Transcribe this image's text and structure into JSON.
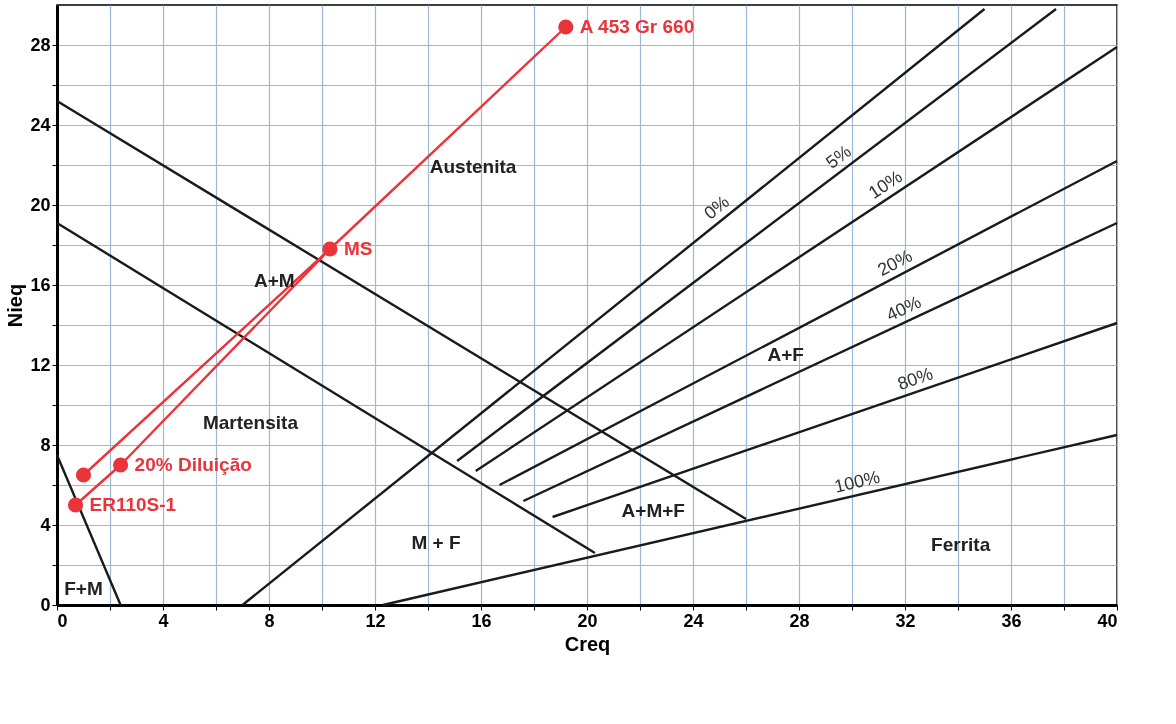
{
  "chart_data": {
    "type": "line",
    "xlabel": "Creq",
    "ylabel": "Nieq",
    "xlim": [
      0,
      40
    ],
    "ylim": [
      0,
      30
    ],
    "xticks": [
      0,
      {
        "value": 2,
        "label": null
      },
      4,
      {
        "value": 6,
        "label": null
      },
      8,
      {
        "value": 10,
        "label": null
      },
      12,
      {
        "value": 14,
        "label": null
      },
      16,
      {
        "value": 18,
        "label": null
      },
      20,
      {
        "value": 22,
        "label": null
      },
      24,
      {
        "value": 26,
        "label": null
      },
      28,
      {
        "value": 30,
        "label": null
      },
      32,
      {
        "value": 34,
        "label": null
      },
      36,
      {
        "value": 38,
        "label": null
      },
      40
    ],
    "yticks": [
      0,
      {
        "value": 2,
        "label": null
      },
      4,
      {
        "value": 6,
        "label": null
      },
      8,
      {
        "value": 10,
        "label": null
      },
      12,
      {
        "value": 14,
        "label": null
      },
      16,
      {
        "value": 18,
        "label": null
      },
      20,
      {
        "value": 22,
        "label": null
      },
      24,
      {
        "value": 26,
        "label": null
      },
      28
    ],
    "grid": true,
    "line_style": "solid",
    "series": [
      {
        "name": "0%",
        "color": "#1a1a1a",
        "x": [
          7.0,
          35.0
        ],
        "values": [
          0,
          29.8
        ]
      },
      {
        "name": "5%",
        "color": "#1a1a1a",
        "x": [
          15.1,
          37.7
        ],
        "values": [
          7.2,
          29.8
        ]
      },
      {
        "name": "10%",
        "color": "#1a1a1a",
        "x": [
          15.8,
          40
        ],
        "values": [
          6.7,
          27.9
        ]
      },
      {
        "name": "20%",
        "color": "#1a1a1a",
        "x": [
          16.7,
          40
        ],
        "values": [
          6.0,
          22.2
        ]
      },
      {
        "name": "40%",
        "color": "#1a1a1a",
        "x": [
          17.6,
          40
        ],
        "values": [
          5.2,
          19.1
        ]
      },
      {
        "name": "80%",
        "color": "#1a1a1a",
        "x": [
          18.7,
          40
        ],
        "values": [
          4.4,
          14.1
        ]
      },
      {
        "name": "100%",
        "color": "#1a1a1a",
        "x": [
          12.3,
          40
        ],
        "values": [
          0,
          8.5
        ]
      },
      {
        "color": "#1a1a1a",
        "x": [
          0,
          26.0
        ],
        "values": [
          25.2,
          4.3
        ]
      },
      {
        "color": "#1a1a1a",
        "x": [
          0,
          20.3
        ],
        "values": [
          19.1,
          2.6
        ]
      },
      {
        "color": "#1a1a1a",
        "x": [
          0,
          2.4
        ],
        "values": [
          7.5,
          0
        ]
      },
      {
        "color": "#e8343a",
        "x": [
          0.7,
          2.4,
          10.3
        ],
        "values": [
          5.0,
          7.0,
          17.8
        ]
      },
      {
        "color": "#e8343a",
        "x": [
          1.0,
          10.3,
          19.2
        ],
        "values": [
          6.5,
          17.8,
          28.9
        ]
      },
      {
        "type": "scatter",
        "marker": "circle",
        "color": "#e8343a",
        "x": [
          0.7,
          1.0,
          2.4,
          10.3,
          19.2
        ],
        "values": [
          5.0,
          6.5,
          7.0,
          17.8,
          28.9
        ]
      }
    ],
    "annotations": [
      "Austenita",
      "A+M",
      "Martensita",
      "M + F",
      "F+M",
      "A+F",
      "A+M+F",
      "Ferrita",
      {
        "text": "ER110S-1",
        "x": 0.7,
        "y": 5.0
      },
      {
        "text": "20% Diluição",
        "x": 2.4,
        "y": 7.0
      },
      {
        "text": "MS",
        "x": 10.3,
        "y": 17.8
      },
      {
        "text": "A 453 Gr 660",
        "x": 19.2,
        "y": 28.9
      }
    ]
  }
}
